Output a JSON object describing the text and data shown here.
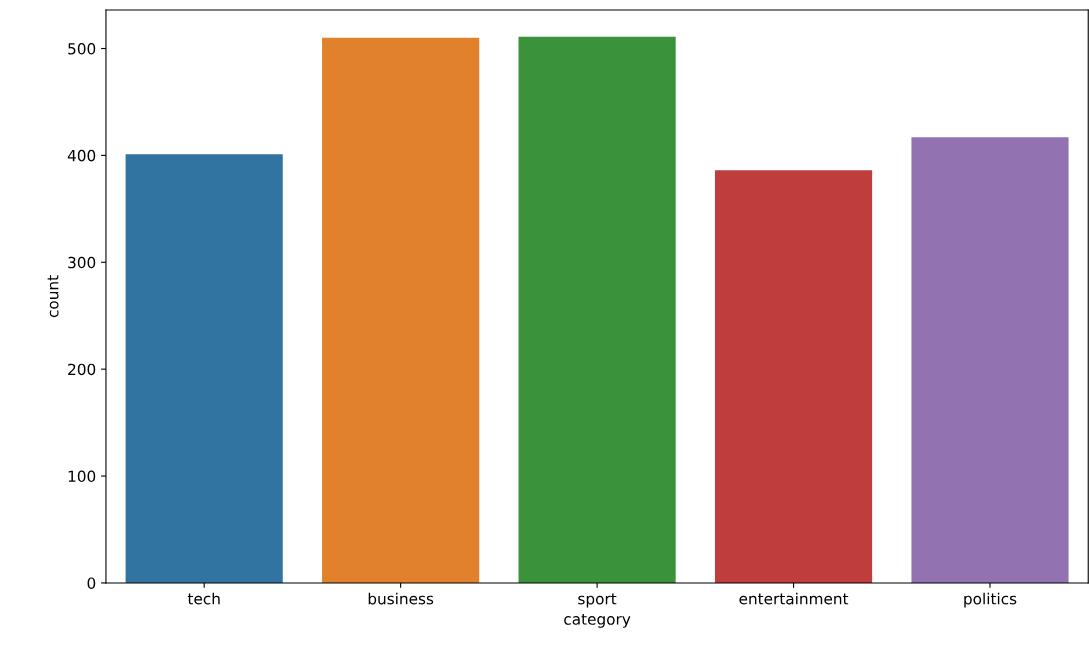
{
  "chart_data": {
    "type": "bar",
    "xlabel": "category",
    "ylabel": "count",
    "categories": [
      "tech",
      "business",
      "sport",
      "entertainment",
      "politics"
    ],
    "values": [
      401,
      510,
      511,
      386,
      417
    ],
    "colors": [
      "#3274a1",
      "#e1812c",
      "#3a923a",
      "#c03d3e",
      "#9372b2"
    ],
    "ylim": [
      0,
      536
    ],
    "yticks": [
      0,
      100,
      200,
      300,
      400,
      500
    ],
    "grid": false
  }
}
